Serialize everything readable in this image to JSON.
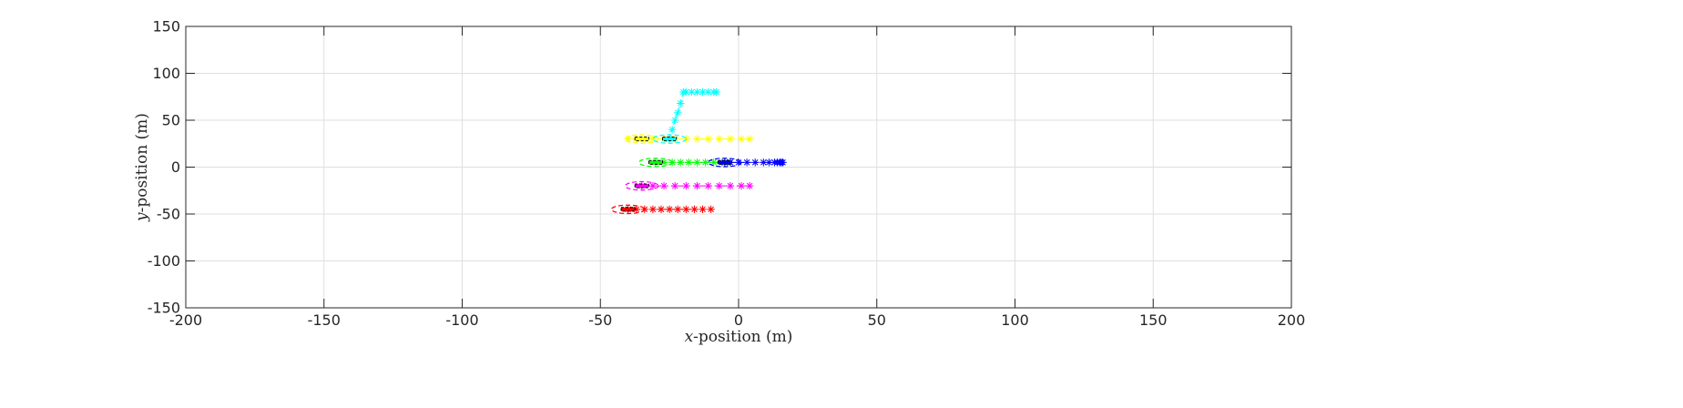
{
  "chart_data": {
    "type": "scatter",
    "title": "",
    "xlabel": {
      "var": "x",
      "text": "-position (m)"
    },
    "ylabel": {
      "var": "y",
      "text": "-position (m)"
    },
    "xlim": [
      -200,
      200
    ],
    "ylim": [
      -150,
      150
    ],
    "xticks": [
      -200,
      -150,
      -100,
      -50,
      0,
      50,
      100,
      150,
      200
    ],
    "yticks": [
      -150,
      -100,
      -50,
      0,
      50,
      100,
      150
    ],
    "grid": true,
    "legend": "none",
    "series": [
      {
        "color": "#ff0000",
        "vehicle": {
          "x": -40,
          "y": -45,
          "length": 5,
          "width": 4
        },
        "ellipse": {
          "x": -40,
          "y": -45,
          "rx": 4.5,
          "ry": 6
        },
        "trajectory": {
          "x": [
            -40,
            -37,
            -34,
            -31,
            -28,
            -25,
            -22,
            -19,
            -16,
            -13,
            -10
          ],
          "y": [
            -45,
            -45,
            -45,
            -45,
            -45,
            -45,
            -45,
            -45,
            -45,
            -45,
            -45
          ]
        }
      },
      {
        "color": "#ff00ff",
        "vehicle": {
          "x": -35,
          "y": -20,
          "length": 5,
          "width": 4
        },
        "ellipse": {
          "x": -35,
          "y": -20,
          "rx": 4.5,
          "ry": 6
        },
        "trajectory": {
          "x": [
            -35,
            -31,
            -27,
            -23,
            -19,
            -15,
            -11,
            -7,
            -3,
            1,
            4
          ],
          "y": [
            -20,
            -20,
            -20,
            -20,
            -20,
            -20,
            -20,
            -20,
            -20,
            -20,
            -20
          ]
        }
      },
      {
        "color": "#00ff00",
        "vehicle": {
          "x": -30,
          "y": 5,
          "length": 5,
          "width": 4
        },
        "ellipse": {
          "x": -30,
          "y": 5,
          "rx": 4.5,
          "ry": 6
        },
        "trajectory": {
          "x": [
            -30,
            -27,
            -24,
            -21,
            -18,
            -15,
            -12,
            -9,
            -6,
            -4
          ],
          "y": [
            5,
            5,
            5,
            5,
            5,
            5,
            5,
            5,
            5,
            5
          ]
        }
      },
      {
        "color": "#ffff00",
        "vehicle": {
          "x": -35,
          "y": 30,
          "length": 5,
          "width": 4
        },
        "ellipse": {
          "x": -35,
          "y": 30,
          "rx": 4.5,
          "ry": 6
        },
        "trajectory": {
          "x": [
            -40,
            -37,
            -34,
            -31,
            -27,
            -23,
            -19,
            -15,
            -11,
            -7,
            -3,
            1,
            4
          ],
          "y": [
            30,
            30,
            30,
            30,
            30,
            30,
            30,
            30,
            30,
            30,
            30,
            30,
            30
          ]
        }
      },
      {
        "color": "#00ffff",
        "vehicle": {
          "x": -25,
          "y": 30,
          "length": 5,
          "width": 4
        },
        "ellipse": {
          "x": -25,
          "y": 30,
          "rx": 4.5,
          "ry": 6
        },
        "trajectory": {
          "x": [
            -25,
            -24,
            -23,
            -22,
            -21,
            -20,
            -19,
            -17,
            -15,
            -13,
            -11,
            -9,
            -8
          ],
          "y": [
            30,
            40,
            50,
            58,
            68,
            80,
            80,
            80,
            80,
            80,
            80,
            80,
            80
          ]
        }
      },
      {
        "color": "#0000ff",
        "vehicle": {
          "x": -5,
          "y": 5,
          "length": 5,
          "width": 4
        },
        "ellipse": {
          "x": -5,
          "y": 5,
          "rx": 4.5,
          "ry": 6
        },
        "trajectory": {
          "x": [
            -5,
            -3,
            0,
            3,
            6,
            9,
            11,
            13,
            14,
            15,
            15.5,
            16
          ],
          "y": [
            5,
            5,
            5,
            5,
            5,
            5,
            5,
            5,
            5,
            5,
            5,
            5
          ]
        }
      }
    ]
  }
}
